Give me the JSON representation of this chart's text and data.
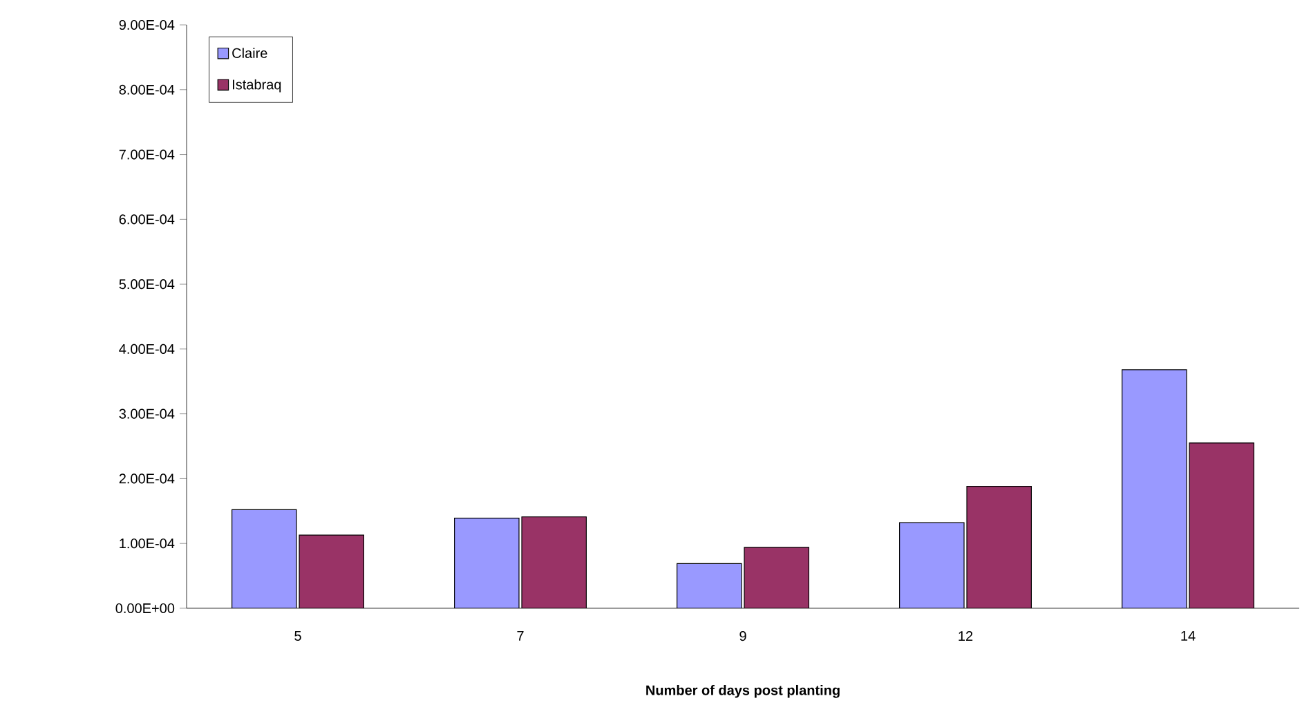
{
  "chart_data": {
    "type": "bar",
    "xlabel": "Number of days  post planting",
    "categories": [
      "5",
      "7",
      "9",
      "12",
      "14"
    ],
    "series": [
      {
        "name": "Claire",
        "color": "#9999ff",
        "values": [
          0.000152,
          0.000139,
          6.9e-05,
          0.000132,
          0.000368
        ]
      },
      {
        "name": "Istabraq",
        "color": "#993366",
        "values": [
          0.000113,
          0.000141,
          9.4e-05,
          0.000188,
          0.000255
        ]
      }
    ],
    "ylim": [
      0,
      0.0009
    ],
    "yticks": [
      {
        "value": 0,
        "label": "0.00E+00"
      },
      {
        "value": 0.0001,
        "label": "1.00E-04"
      },
      {
        "value": 0.0002,
        "label": "2.00E-04"
      },
      {
        "value": 0.0003,
        "label": "3.00E-04"
      },
      {
        "value": 0.0004,
        "label": "4.00E-04"
      },
      {
        "value": 0.0005,
        "label": "5.00E-04"
      },
      {
        "value": 0.0006,
        "label": "6.00E-04"
      },
      {
        "value": 0.0007,
        "label": "7.00E-04"
      },
      {
        "value": 0.0008,
        "label": "8.00E-04"
      },
      {
        "value": 0.0009,
        "label": "9.00E-04"
      }
    ],
    "grid": false,
    "legend": "top left"
  }
}
